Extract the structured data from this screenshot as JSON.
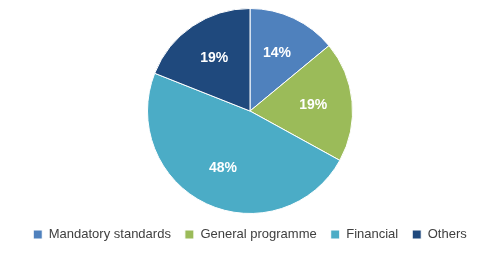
{
  "chart_data": {
    "type": "pie",
    "categories": [
      "Mandatory standards",
      "General programme",
      "Financial",
      "Others"
    ],
    "values": [
      14,
      19,
      48,
      19
    ],
    "value_labels": [
      "14%",
      "19%",
      "48%",
      "19%"
    ],
    "colors": [
      "#4f81bd",
      "#9bbb59",
      "#4bacc6",
      "#1f497d"
    ],
    "data_labels": true,
    "legend": "bottom"
  }
}
